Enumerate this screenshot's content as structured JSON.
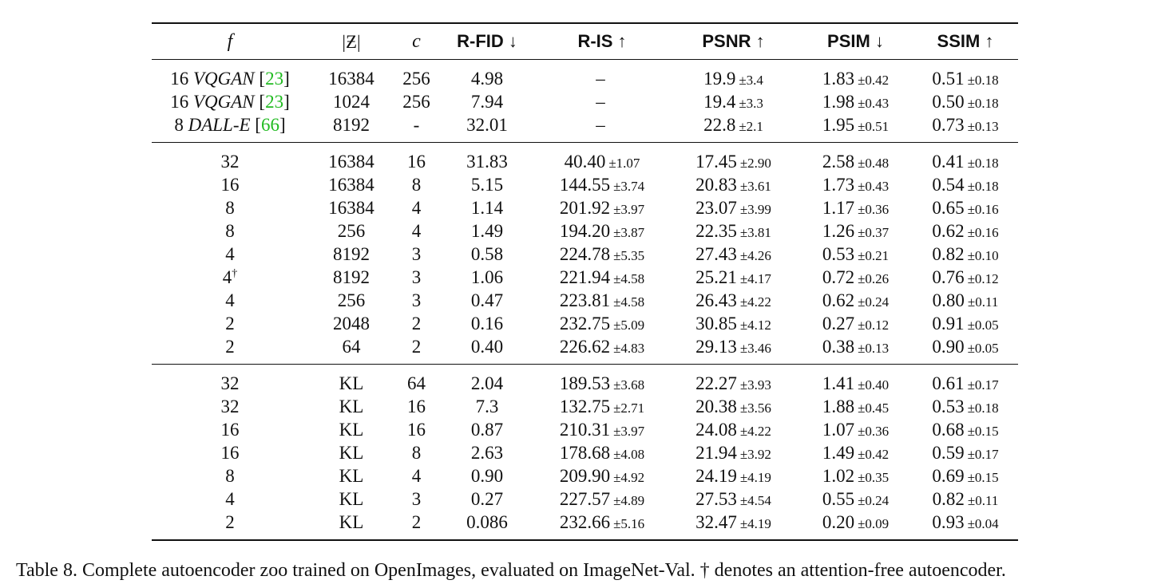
{
  "table": {
    "headers": [
      "f",
      "|Ƶ|",
      "c",
      "R-FID ↓",
      "R-IS ↑",
      "PSNR ↑",
      "PSIM ↓",
      "SSIM ↑"
    ],
    "baselines": [
      {
        "f_num": "16",
        "f_model": "VQGAN",
        "f_ref": "23",
        "z": "16384",
        "c": "256",
        "rfid": "4.98",
        "ris": "–",
        "ris_pm": "",
        "psnr": "19.9",
        "psnr_pm": "±3.4",
        "psim": "1.83",
        "psim_pm": "±0.42",
        "ssim": "0.51",
        "ssim_pm": "±0.18"
      },
      {
        "f_num": "16",
        "f_model": "VQGAN",
        "f_ref": "23",
        "z": "1024",
        "c": "256",
        "rfid": "7.94",
        "ris": "–",
        "ris_pm": "",
        "psnr": "19.4",
        "psnr_pm": "±3.3",
        "psim": "1.98",
        "psim_pm": "±0.43",
        "ssim": "0.50",
        "ssim_pm": "±0.18"
      },
      {
        "f_num": "8",
        "f_model": "DALL-E",
        "f_ref": "66",
        "z": "8192",
        "c": "-",
        "rfid": "32.01",
        "ris": "–",
        "ris_pm": "",
        "psnr": "22.8",
        "psnr_pm": "±2.1",
        "psim": "1.95",
        "psim_pm": "±0.51",
        "ssim": "0.73",
        "ssim_pm": "±0.13"
      }
    ],
    "vq_rows": [
      {
        "f": "32",
        "dagger": "",
        "z": "16384",
        "c": "16",
        "rfid": "31.83",
        "ris": "40.40",
        "ris_pm": "±1.07",
        "psnr": "17.45",
        "psnr_pm": "±2.90",
        "psim": "2.58",
        "psim_pm": "±0.48",
        "ssim": "0.41",
        "ssim_pm": "±0.18"
      },
      {
        "f": "16",
        "dagger": "",
        "z": "16384",
        "c": "8",
        "rfid": "5.15",
        "ris": "144.55",
        "ris_pm": "±3.74",
        "psnr": "20.83",
        "psnr_pm": "±3.61",
        "psim": "1.73",
        "psim_pm": "±0.43",
        "ssim": "0.54",
        "ssim_pm": "±0.18"
      },
      {
        "f": "8",
        "dagger": "",
        "z": "16384",
        "c": "4",
        "rfid": "1.14",
        "ris": "201.92",
        "ris_pm": "±3.97",
        "psnr": "23.07",
        "psnr_pm": "±3.99",
        "psim": "1.17",
        "psim_pm": "±0.36",
        "ssim": "0.65",
        "ssim_pm": "±0.16"
      },
      {
        "f": "8",
        "dagger": "",
        "z": "256",
        "c": "4",
        "rfid": "1.49",
        "ris": "194.20",
        "ris_pm": "±3.87",
        "psnr": "22.35",
        "psnr_pm": "±3.81",
        "psim": "1.26",
        "psim_pm": "±0.37",
        "ssim": "0.62",
        "ssim_pm": "±0.16"
      },
      {
        "f": "4",
        "dagger": "",
        "z": "8192",
        "c": "3",
        "rfid": "0.58",
        "ris": "224.78",
        "ris_pm": "±5.35",
        "psnr": "27.43",
        "psnr_pm": "±4.26",
        "psim": "0.53",
        "psim_pm": "±0.21",
        "ssim": "0.82",
        "ssim_pm": "±0.10"
      },
      {
        "f": "4",
        "dagger": "†",
        "z": "8192",
        "c": "3",
        "rfid": "1.06",
        "ris": "221.94",
        "ris_pm": "±4.58",
        "psnr": "25.21",
        "psnr_pm": "±4.17",
        "psim": "0.72",
        "psim_pm": "±0.26",
        "ssim": "0.76",
        "ssim_pm": "±0.12"
      },
      {
        "f": "4",
        "dagger": "",
        "z": "256",
        "c": "3",
        "rfid": "0.47",
        "ris": "223.81",
        "ris_pm": "±4.58",
        "psnr": "26.43",
        "psnr_pm": "±4.22",
        "psim": "0.62",
        "psim_pm": "±0.24",
        "ssim": "0.80",
        "ssim_pm": "±0.11"
      },
      {
        "f": "2",
        "dagger": "",
        "z": "2048",
        "c": "2",
        "rfid": "0.16",
        "ris": "232.75",
        "ris_pm": "±5.09",
        "psnr": "30.85",
        "psnr_pm": "±4.12",
        "psim": "0.27",
        "psim_pm": "±0.12",
        "ssim": "0.91",
        "ssim_pm": "±0.05"
      },
      {
        "f": "2",
        "dagger": "",
        "z": "64",
        "c": "2",
        "rfid": "0.40",
        "ris": "226.62",
        "ris_pm": "±4.83",
        "psnr": "29.13",
        "psnr_pm": "±3.46",
        "psim": "0.38",
        "psim_pm": "±0.13",
        "ssim": "0.90",
        "ssim_pm": "±0.05"
      }
    ],
    "kl_rows": [
      {
        "f": "32",
        "dagger": "",
        "z": "KL",
        "c": "64",
        "rfid": "2.04",
        "ris": "189.53",
        "ris_pm": "±3.68",
        "psnr": "22.27",
        "psnr_pm": "±3.93",
        "psim": "1.41",
        "psim_pm": "±0.40",
        "ssim": "0.61",
        "ssim_pm": "±0.17"
      },
      {
        "f": "32",
        "dagger": "",
        "z": "KL",
        "c": "16",
        "rfid": "7.3",
        "ris": "132.75",
        "ris_pm": "±2.71",
        "psnr": "20.38",
        "psnr_pm": "±3.56",
        "psim": "1.88",
        "psim_pm": "±0.45",
        "ssim": "0.53",
        "ssim_pm": "±0.18"
      },
      {
        "f": "16",
        "dagger": "",
        "z": "KL",
        "c": "16",
        "rfid": "0.87",
        "ris": "210.31",
        "ris_pm": "±3.97",
        "psnr": "24.08",
        "psnr_pm": "±4.22",
        "psim": "1.07",
        "psim_pm": "±0.36",
        "ssim": "0.68",
        "ssim_pm": "±0.15"
      },
      {
        "f": "16",
        "dagger": "",
        "z": "KL",
        "c": "8",
        "rfid": "2.63",
        "ris": "178.68",
        "ris_pm": "±4.08",
        "psnr": "21.94",
        "psnr_pm": "±3.92",
        "psim": "1.49",
        "psim_pm": "±0.42",
        "ssim": "0.59",
        "ssim_pm": "±0.17"
      },
      {
        "f": "8",
        "dagger": "",
        "z": "KL",
        "c": "4",
        "rfid": "0.90",
        "ris": "209.90",
        "ris_pm": "±4.92",
        "psnr": "24.19",
        "psnr_pm": "±4.19",
        "psim": "1.02",
        "psim_pm": "±0.35",
        "ssim": "0.69",
        "ssim_pm": "±0.15"
      },
      {
        "f": "4",
        "dagger": "",
        "z": "KL",
        "c": "3",
        "rfid": "0.27",
        "ris": "227.57",
        "ris_pm": "±4.89",
        "psnr": "27.53",
        "psnr_pm": "±4.54",
        "psim": "0.55",
        "psim_pm": "±0.24",
        "ssim": "0.82",
        "ssim_pm": "±0.11"
      },
      {
        "f": "2",
        "dagger": "",
        "z": "KL",
        "c": "2",
        "rfid": "0.086",
        "ris": "232.66",
        "ris_pm": "±5.16",
        "psnr": "32.47",
        "psnr_pm": "±4.19",
        "psim": "0.20",
        "psim_pm": "±0.09",
        "ssim": "0.93",
        "ssim_pm": "±0.04"
      }
    ]
  },
  "caption": "Table 8.  Complete autoencoder zoo trained on OpenImages, evaluated on ImageNet-Val. † denotes an attention-free autoencoder."
}
